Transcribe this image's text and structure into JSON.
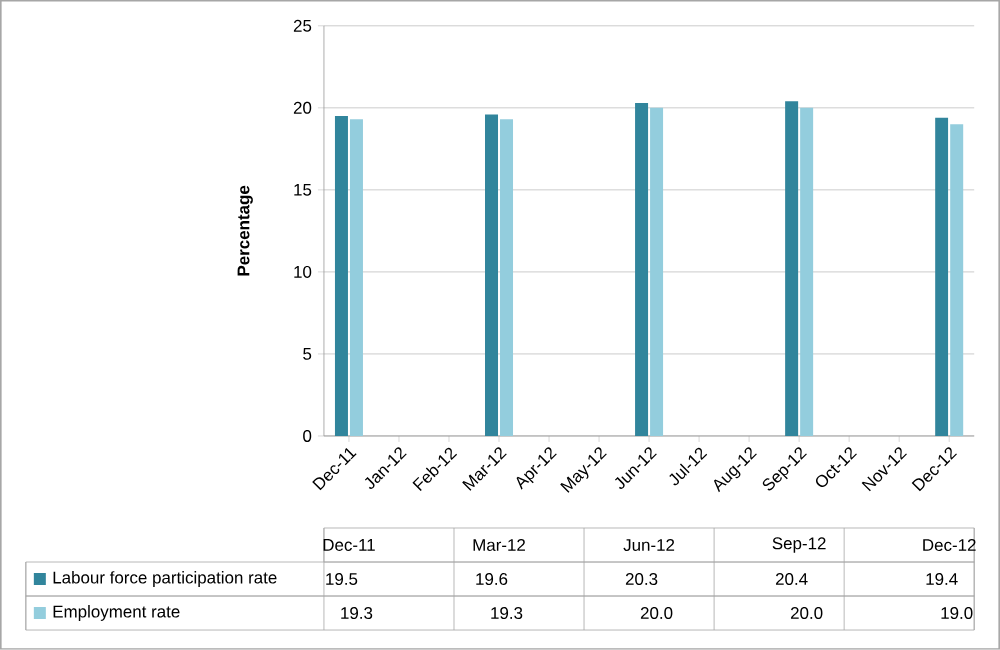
{
  "chart_data": {
    "type": "bar",
    "ylabel": "Percentage",
    "categories": [
      "Dec-11",
      "Jan-12",
      "Feb-12",
      "Mar-12",
      "Apr-12",
      "May-12",
      "Jun-12",
      "Jul-12",
      "Aug-12",
      "Sep-12",
      "Oct-12",
      "Nov-12",
      "Dec-12"
    ],
    "series": [
      {
        "name": "Labour force participation rate",
        "color": "#31859c",
        "values": [
          19.5,
          null,
          null,
          19.6,
          null,
          null,
          20.3,
          null,
          null,
          20.4,
          null,
          null,
          19.4
        ],
        "value_labels": [
          "19.5",
          null,
          null,
          "19.6",
          null,
          null,
          "20.3",
          null,
          null,
          "20.4",
          null,
          null,
          "19.4"
        ]
      },
      {
        "name": "Employment rate",
        "color": "#93cddd",
        "values": [
          19.3,
          null,
          null,
          19.3,
          null,
          null,
          20.0,
          null,
          null,
          20.0,
          null,
          null,
          19.0
        ],
        "value_labels": [
          "19.3",
          null,
          null,
          "19.3",
          null,
          null,
          "20.0",
          null,
          null,
          "20.0",
          null,
          null,
          "19.0"
        ]
      }
    ],
    "ylim": [
      0,
      25
    ],
    "yticks": [
      0,
      5,
      10,
      15,
      20,
      25
    ],
    "grid": "y",
    "legend": "bottom"
  }
}
